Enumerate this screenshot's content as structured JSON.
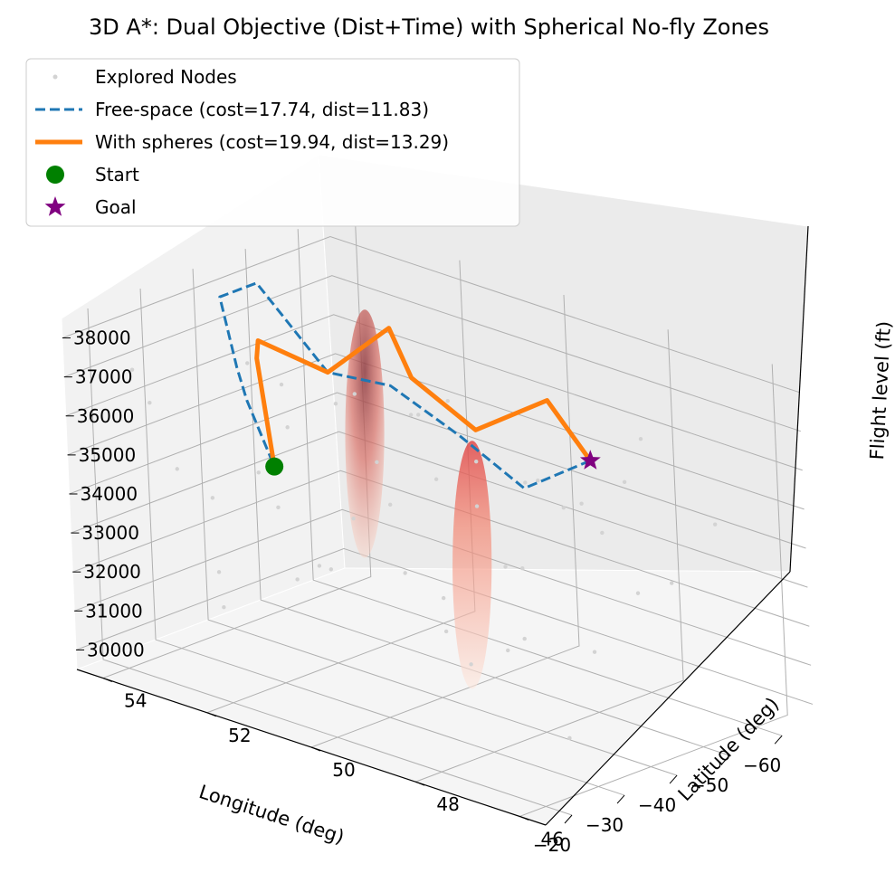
{
  "chart_data": {
    "type": "scatter",
    "projection": "3d",
    "title": "3D A*: Dual Objective (Dist+Time) with Spherical No-fly Zones",
    "xlabel": "Longitude (deg)",
    "ylabel": "Latitude (deg)",
    "zlabel": "Flight level (ft)",
    "xlim": [
      -66,
      -15
    ],
    "ylim": [
      45.5,
      54.5
    ],
    "zlim": [
      29500,
      38500
    ],
    "x_ticks": [
      -60,
      -50,
      -40,
      -30,
      -20
    ],
    "y_ticks": [
      46,
      48,
      50,
      52,
      54
    ],
    "z_ticks": [
      30000,
      31000,
      32000,
      33000,
      34000,
      35000,
      36000,
      37000,
      38000
    ],
    "legend_position": "upper-left",
    "grid": true,
    "series": [
      {
        "name": "Explored Nodes",
        "kind": "scatter",
        "color": "#d3d3d3",
        "points": [
          [
            -55,
            47,
            33000
          ],
          [
            -52,
            48,
            34000
          ],
          [
            -50,
            49,
            35000
          ],
          [
            -48,
            50,
            34000
          ],
          [
            -46,
            51,
            36000
          ],
          [
            -44,
            52,
            33000
          ],
          [
            -42,
            53,
            35000
          ],
          [
            -40,
            47,
            32000
          ],
          [
            -38,
            48,
            36000
          ],
          [
            -36,
            49,
            31000
          ],
          [
            -34,
            50,
            33000
          ],
          [
            -32,
            51,
            37000
          ],
          [
            -30,
            52,
            34000
          ],
          [
            -28,
            53,
            32000
          ],
          [
            -26,
            54,
            36000
          ],
          [
            -24,
            47,
            35000
          ],
          [
            -22,
            48,
            33000
          ],
          [
            -20,
            49,
            37000
          ],
          [
            -18,
            50,
            34000
          ],
          [
            -17,
            51,
            36000
          ],
          [
            -19,
            52,
            32000
          ],
          [
            -21,
            53,
            35000
          ],
          [
            -23,
            54,
            37000
          ],
          [
            -25,
            46,
            31000
          ],
          [
            -27,
            47,
            33000
          ],
          [
            -29,
            48,
            37000
          ],
          [
            -31,
            49,
            36000
          ],
          [
            -33,
            52,
            32000
          ],
          [
            -35,
            53,
            37000
          ],
          [
            -37,
            54,
            33000
          ],
          [
            -39,
            46,
            34000
          ],
          [
            -41,
            50,
            32000
          ],
          [
            -43,
            49,
            31000
          ],
          [
            -45,
            48,
            35000
          ],
          [
            -47,
            47,
            36000
          ],
          [
            -49,
            53,
            31000
          ],
          [
            -51,
            52,
            33000
          ],
          [
            -53,
            51,
            36000
          ],
          [
            -56,
            50,
            32000
          ],
          [
            -58,
            49,
            34000
          ],
          [
            -60,
            48,
            36000
          ],
          [
            -57,
            52,
            35000
          ],
          [
            -54,
            46,
            35000
          ],
          [
            -22,
            51,
            38000
          ],
          [
            -26,
            50,
            38000
          ]
        ]
      },
      {
        "name": "Free-space (cost=17.74, dist=11.83)",
        "kind": "line",
        "style": "dashed",
        "color": "#1f77b4",
        "points": [
          [
            -60,
            49,
            35000
          ],
          [
            -57,
            50,
            34000
          ],
          [
            -55,
            51,
            35000
          ],
          [
            -52,
            52,
            36000
          ],
          [
            -50,
            53,
            36000
          ],
          [
            -47,
            54,
            38000
          ],
          [
            -40,
            54,
            38000
          ],
          [
            -33,
            53,
            37000
          ],
          [
            -25,
            52,
            37000
          ],
          [
            -20,
            51,
            36000
          ]
        ]
      },
      {
        "name": "With spheres (cost=19.94, dist=13.29)",
        "kind": "line",
        "style": "solid",
        "color": "#ff7f0e",
        "points": [
          [
            -60,
            49,
            35000
          ],
          [
            -62,
            50,
            36000
          ],
          [
            -58,
            51,
            35000
          ],
          [
            -56,
            52,
            36000
          ],
          [
            -57,
            52.5,
            37000
          ],
          [
            -50,
            53,
            36000
          ],
          [
            -42,
            53.5,
            37000
          ],
          [
            -32,
            52.5,
            37500
          ],
          [
            -20,
            51,
            36000
          ]
        ]
      },
      {
        "name": "Start",
        "kind": "marker",
        "marker": "circle",
        "color": "#008000",
        "points": [
          [
            -20,
            51,
            36000
          ]
        ]
      },
      {
        "name": "Goal",
        "kind": "marker",
        "marker": "star",
        "color": "#800080",
        "points": [
          [
            -60,
            49,
            35000
          ]
        ]
      }
    ],
    "no_fly_zones": [
      {
        "center": [
          -42,
          51.5,
          35500
        ],
        "radius_deg": 6
      },
      {
        "center": [
          -37,
          49,
          33500
        ],
        "radius_deg": 6
      }
    ]
  }
}
